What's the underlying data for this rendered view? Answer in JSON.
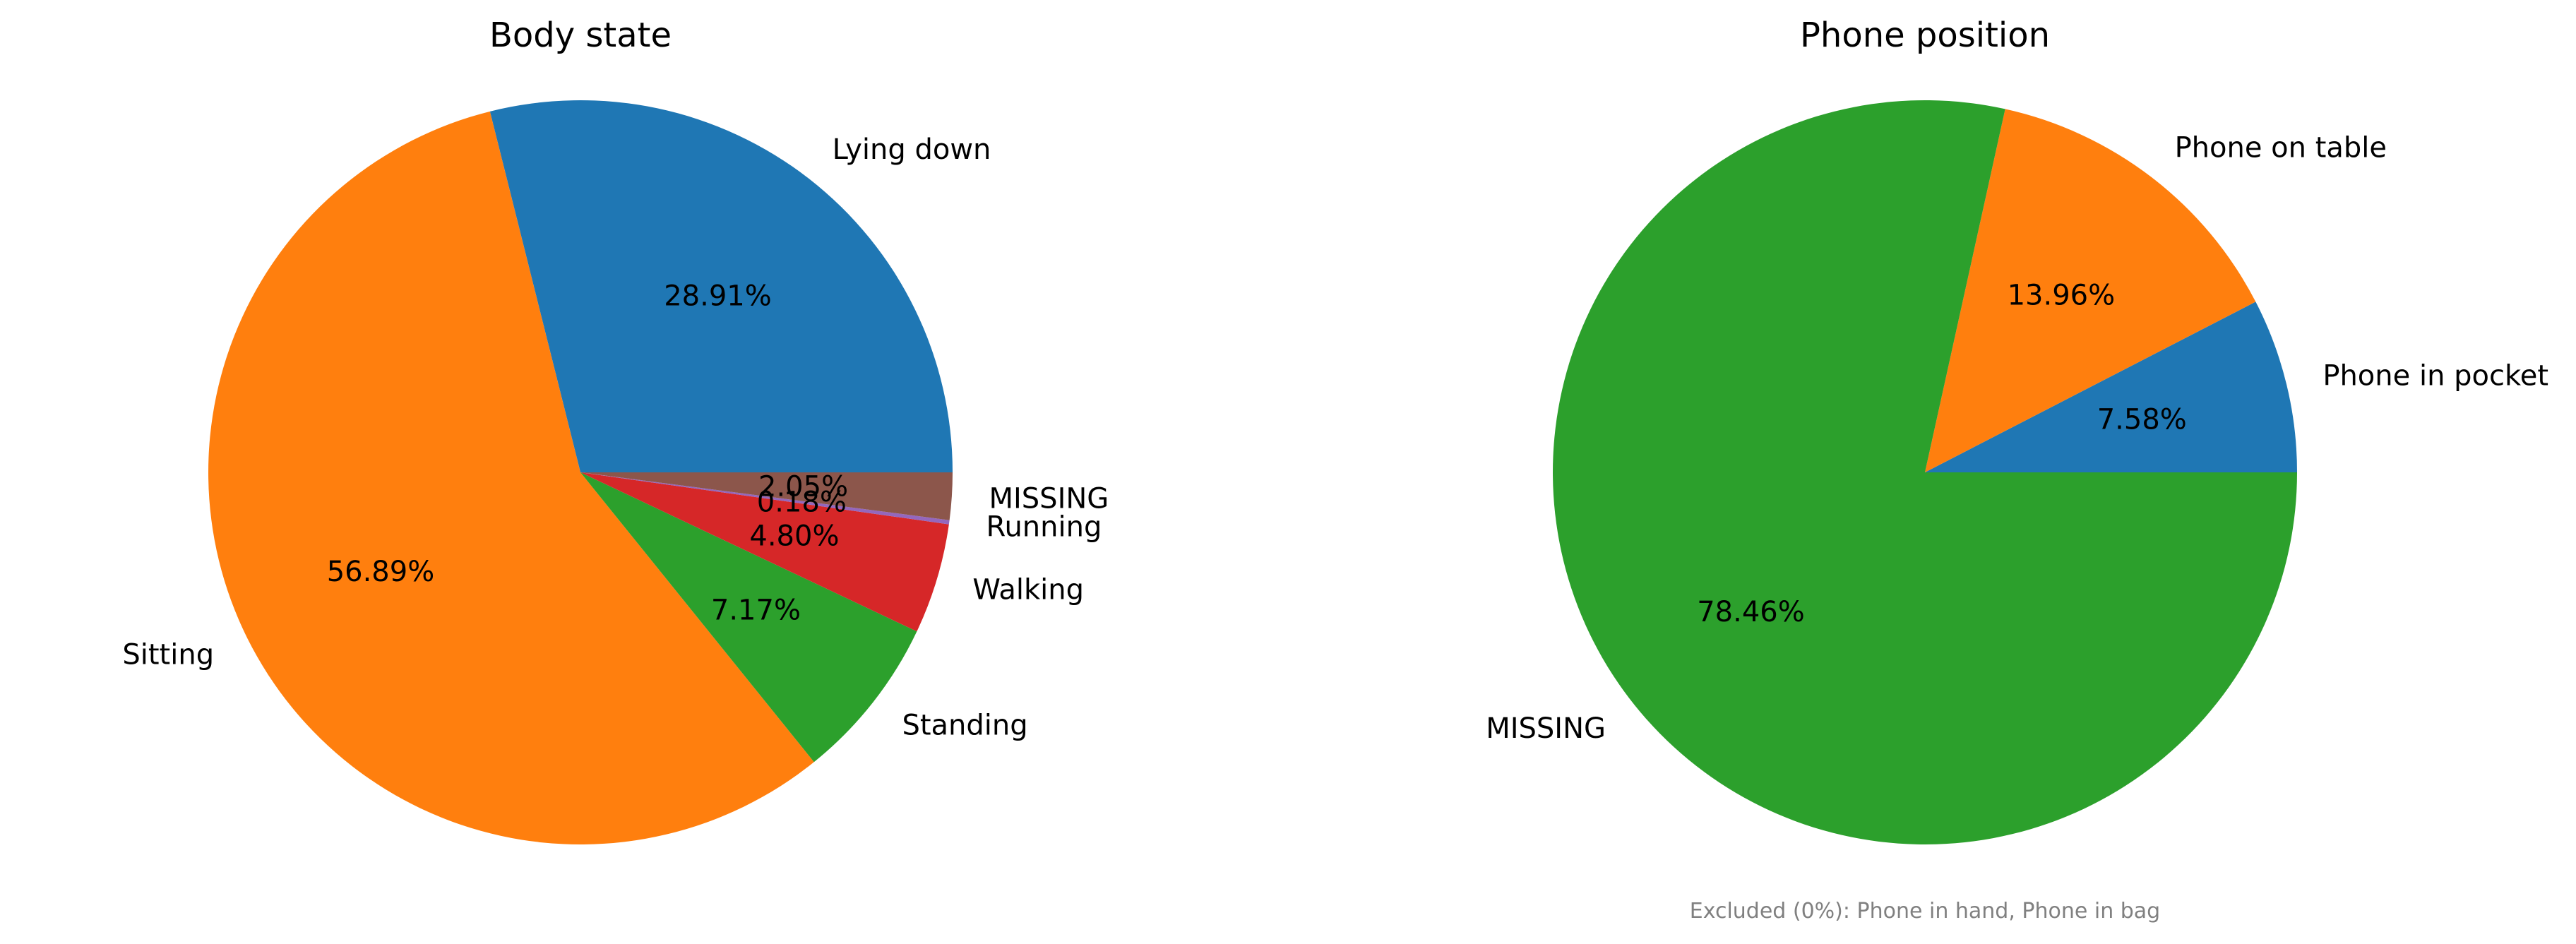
{
  "chart_data": [
    {
      "type": "pie",
      "title": "Body state",
      "slices": [
        {
          "label": "Lying down",
          "value": 28.91,
          "pct_label": "28.91%",
          "color": "#1f77b4"
        },
        {
          "label": "Sitting",
          "value": 56.89,
          "pct_label": "56.89%",
          "color": "#ff7f0e"
        },
        {
          "label": "Standing",
          "value": 7.17,
          "pct_label": "7.17%",
          "color": "#2ca02c"
        },
        {
          "label": "Walking",
          "value": 4.8,
          "pct_label": "4.80%",
          "color": "#d62728"
        },
        {
          "label": "Running",
          "value": 0.18,
          "pct_label": "0.18%",
          "color": "#9467bd"
        },
        {
          "label": "MISSING",
          "value": 2.05,
          "pct_label": "2.05%",
          "color": "#8c564b"
        }
      ]
    },
    {
      "type": "pie",
      "title": "Phone position",
      "slices": [
        {
          "label": "Phone in pocket",
          "value": 7.58,
          "pct_label": "7.58%",
          "color": "#1f77b4"
        },
        {
          "label": "Phone on table",
          "value": 13.96,
          "pct_label": "13.96%",
          "color": "#ff7f0e"
        },
        {
          "label": "MISSING",
          "value": 78.46,
          "pct_label": "78.46%",
          "color": "#2ca02c"
        }
      ],
      "note": "Excluded (0%): Phone in hand, Phone in bag"
    }
  ]
}
